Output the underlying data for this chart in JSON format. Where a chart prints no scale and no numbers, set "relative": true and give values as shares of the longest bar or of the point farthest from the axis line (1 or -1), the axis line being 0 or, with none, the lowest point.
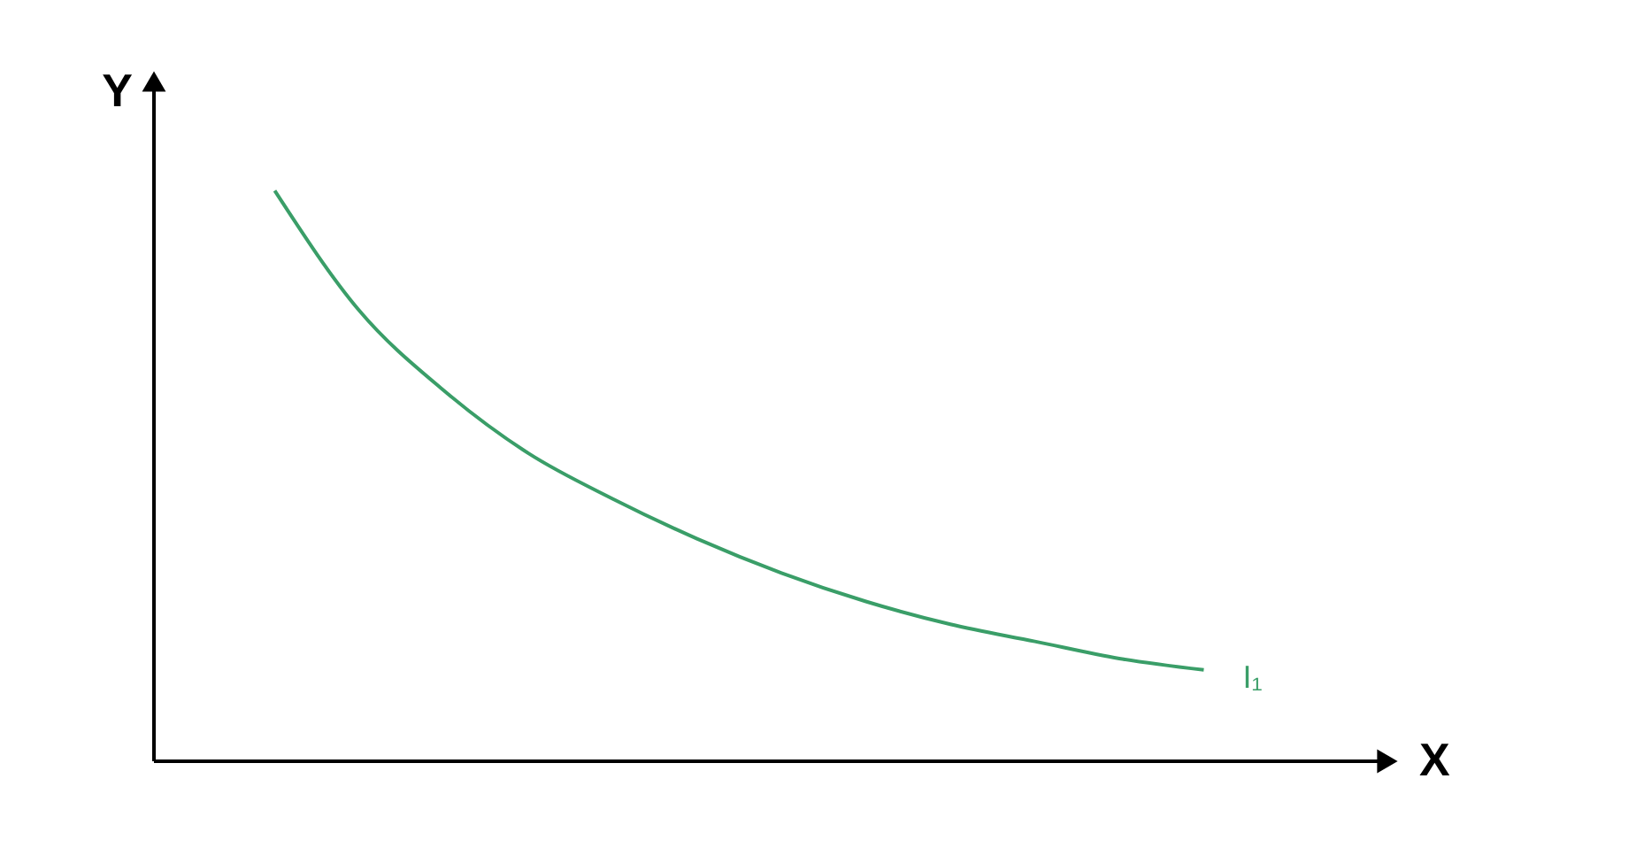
{
  "chart_data": {
    "type": "line",
    "relative": true,
    "xlabel": "X",
    "ylabel": "Y",
    "categories": [
      null,
      null,
      null,
      null,
      null,
      null,
      null,
      null,
      null,
      null,
      null,
      null
    ],
    "series": [
      {
        "name": "I₁",
        "color": "#3a9e68",
        "values": [
          1,
          0.79,
          0.65,
          0.54,
          0.46,
          0.39,
          0.33,
          0.28,
          0.24,
          0.21,
          0.18,
          0.16
        ]
      }
    ]
  }
}
